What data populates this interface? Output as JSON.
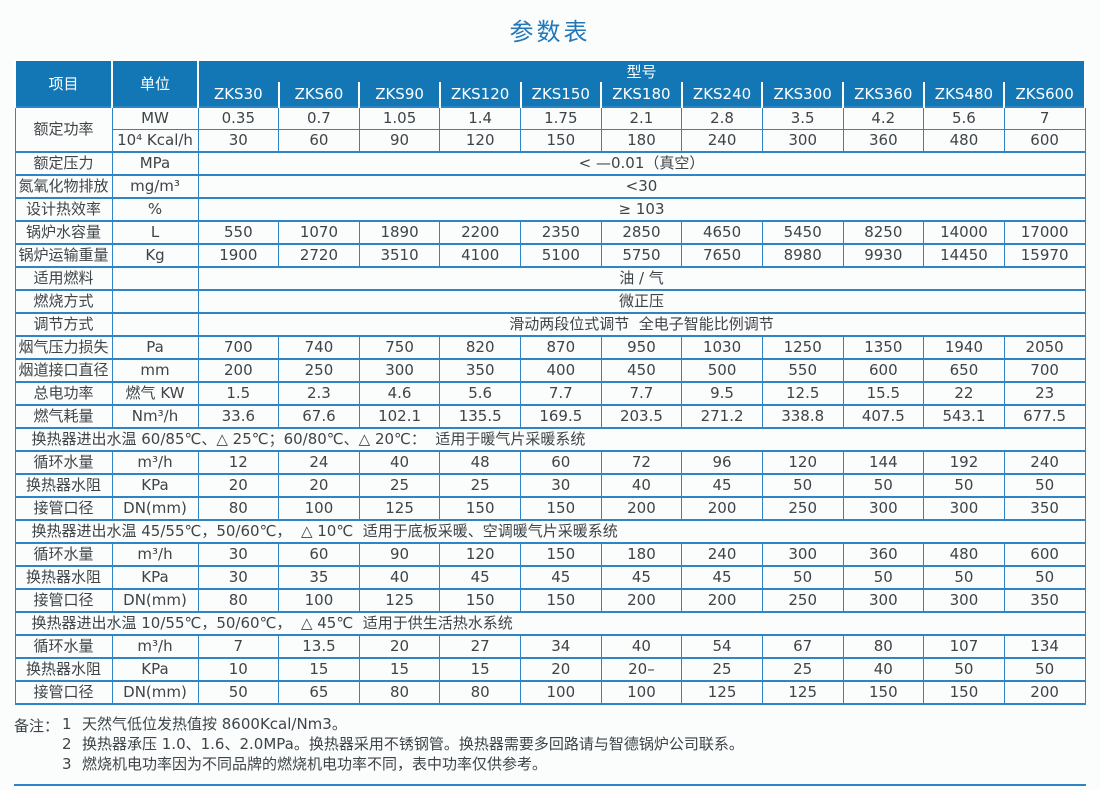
{
  "page_title": "参数表",
  "colors": {
    "header_bg": "#1377b5",
    "border_blue": "#2e84c5",
    "title_blue": "#2277b9",
    "body_text": "#3e4447"
  },
  "table": {
    "header": {
      "item": "项目",
      "unit": "单位",
      "model": "型号"
    },
    "models": [
      "ZKS30",
      "ZKS60",
      "ZKS90",
      "ZKS120",
      "ZKS150",
      "ZKS180",
      "ZKS240",
      "ZKS300",
      "ZKS360",
      "ZKS480",
      "ZKS600"
    ],
    "rows": [
      {
        "t": "group",
        "label": "额定功率",
        "unit": "MW",
        "values": [
          "0.35",
          "0.7",
          "1.05",
          "1.4",
          "1.75",
          "2.1",
          "2.8",
          "3.5",
          "4.2",
          "5.6",
          "7"
        ]
      },
      {
        "t": "cont",
        "unit": "10⁴ Kcal/h",
        "values": [
          "30",
          "60",
          "90",
          "120",
          "150",
          "180",
          "240",
          "300",
          "360",
          "480",
          "600"
        ]
      },
      {
        "t": "merged",
        "label": "额定压力",
        "unit": "MPa",
        "value": "< —0.01（真空）"
      },
      {
        "t": "merged",
        "label": "氮氧化物排放",
        "unit": "mg/m³",
        "value": "<30"
      },
      {
        "t": "merged",
        "label": "设计热效率",
        "unit": "%",
        "value": "≥ 103"
      },
      {
        "t": "data",
        "label": "锅炉水容量",
        "unit": "L",
        "values": [
          "550",
          "1070",
          "1890",
          "2200",
          "2350",
          "2850",
          "4650",
          "5450",
          "8250",
          "14000",
          "17000"
        ]
      },
      {
        "t": "data",
        "label": "锅炉运输重量",
        "unit": "Kg",
        "values": [
          "1900",
          "2720",
          "3510",
          "4100",
          "5100",
          "5750",
          "7650",
          "8980",
          "9930",
          "14450",
          "15970"
        ]
      },
      {
        "t": "merged",
        "label": "适用燃料",
        "unit": "",
        "value": "油 / 气"
      },
      {
        "t": "merged",
        "label": "燃烧方式",
        "unit": "",
        "value": "微正压"
      },
      {
        "t": "merged",
        "label": "调节方式",
        "unit": "",
        "value": "滑动两段位式调节  全电子智能比例调节"
      },
      {
        "t": "data",
        "label": "烟气压力损失",
        "unit": "Pa",
        "values": [
          "700",
          "740",
          "750",
          "820",
          "870",
          "950",
          "1030",
          "1250",
          "1350",
          "1940",
          "2050"
        ]
      },
      {
        "t": "data",
        "label": "烟道接口直径",
        "unit": "mm",
        "values": [
          "200",
          "250",
          "300",
          "350",
          "400",
          "450",
          "500",
          "550",
          "600",
          "650",
          "700"
        ]
      },
      {
        "t": "data",
        "label": "总电功率",
        "unit": "燃气 KW",
        "values": [
          "1.5",
          "2.3",
          "4.6",
          "5.6",
          "7.7",
          "7.7",
          "9.5",
          "12.5",
          "15.5",
          "22",
          "23"
        ]
      },
      {
        "t": "data",
        "label": "燃气耗量",
        "unit": "Nm³/h",
        "values": [
          "33.6",
          "67.6",
          "102.1",
          "135.5",
          "169.5",
          "203.5",
          "271.2",
          "338.8",
          "407.5",
          "543.1",
          "677.5"
        ]
      },
      {
        "t": "section",
        "text": "换热器进出水温 60/85℃、△ 25℃；60/80℃、△ 20℃：  适用于暖气片采暖系统"
      },
      {
        "t": "data",
        "label": "循环水量",
        "unit": "m³/h",
        "values": [
          "12",
          "24",
          "40",
          "48",
          "60",
          "72",
          "96",
          "120",
          "144",
          "192",
          "240"
        ]
      },
      {
        "t": "data",
        "label": "换热器水阻",
        "unit": "KPa",
        "values": [
          "20",
          "20",
          "25",
          "25",
          "30",
          "40",
          "45",
          "50",
          "50",
          "50",
          "50"
        ]
      },
      {
        "t": "data",
        "label": "接管口径",
        "unit": "DN(mm)",
        "values": [
          "80",
          "100",
          "125",
          "150",
          "150",
          "200",
          "200",
          "250",
          "300",
          "300",
          "350"
        ]
      },
      {
        "t": "section",
        "text": "换热器进出水温 45/55℃，50/60℃，  △ 10℃  适用于底板采暖、空调暖气片采暖系统"
      },
      {
        "t": "data",
        "label": "循环水量",
        "unit": "m³/h",
        "values": [
          "30",
          "60",
          "90",
          "120",
          "150",
          "180",
          "240",
          "300",
          "360",
          "480",
          "600"
        ]
      },
      {
        "t": "data",
        "label": "换热器水阻",
        "unit": "KPa",
        "values": [
          "30",
          "35",
          "40",
          "45",
          "45",
          "45",
          "45",
          "50",
          "50",
          "50",
          "50"
        ]
      },
      {
        "t": "data",
        "label": "接管口径",
        "unit": "DN(mm)",
        "values": [
          "80",
          "100",
          "125",
          "150",
          "150",
          "200",
          "200",
          "250",
          "300",
          "300",
          "350"
        ]
      },
      {
        "t": "section",
        "text": "换热器进出水温 10/55℃，50/60℃，  △ 45℃  适用于供生活热水系统"
      },
      {
        "t": "data",
        "label": "循环水量",
        "unit": "m³/h",
        "values": [
          "7",
          "13.5",
          "20",
          "27",
          "34",
          "40",
          "54",
          "67",
          "80",
          "107",
          "134"
        ]
      },
      {
        "t": "data",
        "label": "换热器水阻",
        "unit": "KPa",
        "values": [
          "10",
          "15",
          "15",
          "15",
          "20",
          "20–",
          "25",
          "25",
          "40",
          "50",
          "50"
        ]
      },
      {
        "t": "data",
        "label": "接管口径",
        "unit": "DN(mm)",
        "values": [
          "50",
          "65",
          "80",
          "80",
          "100",
          "100",
          "125",
          "125",
          "150",
          "150",
          "200"
        ]
      }
    ]
  },
  "notes": {
    "label": "备注：",
    "items": [
      {
        "num": "1",
        "text": "天然气低位发热值按 8600Kcal/Nm3。"
      },
      {
        "num": "2",
        "text": "换热器承压 1.0、1.6、2.0MPa。换热器采用不锈钢管。换热器需要多回路请与智德锅炉公司联系。"
      },
      {
        "num": "3",
        "text": "燃烧机电功率因为不同品牌的燃烧机电功率不同，表中功率仅供参考。"
      }
    ]
  }
}
